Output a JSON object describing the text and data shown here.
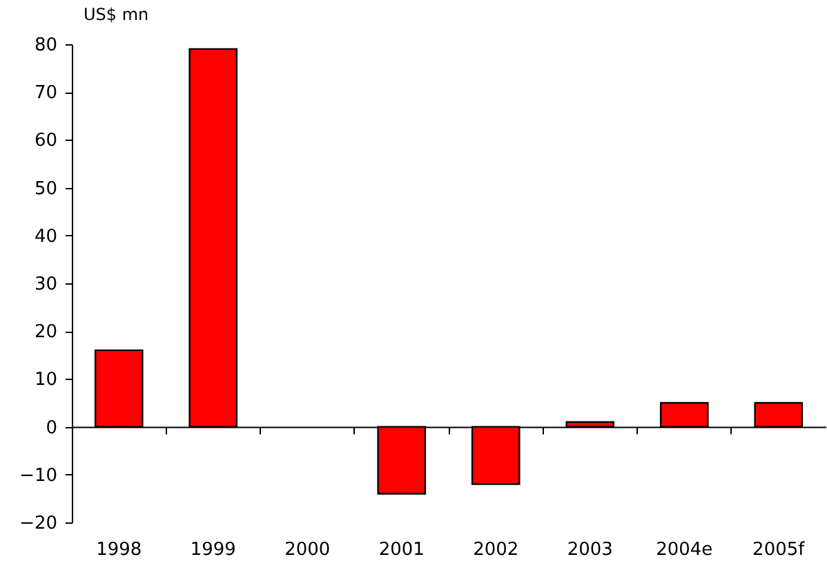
{
  "chart_data": {
    "type": "bar",
    "ylabel": "US$ mn",
    "categories": [
      "1998",
      "1999",
      "2000",
      "2001",
      "2002",
      "2003",
      "2004e",
      "2005f"
    ],
    "values": [
      16,
      79,
      0,
      -14,
      -12,
      1,
      5,
      5
    ],
    "color": "#ff0000",
    "ylim": [
      -20,
      80
    ],
    "yticks": [
      -20,
      -10,
      0,
      10,
      20,
      30,
      40,
      50,
      60,
      70,
      80
    ]
  }
}
